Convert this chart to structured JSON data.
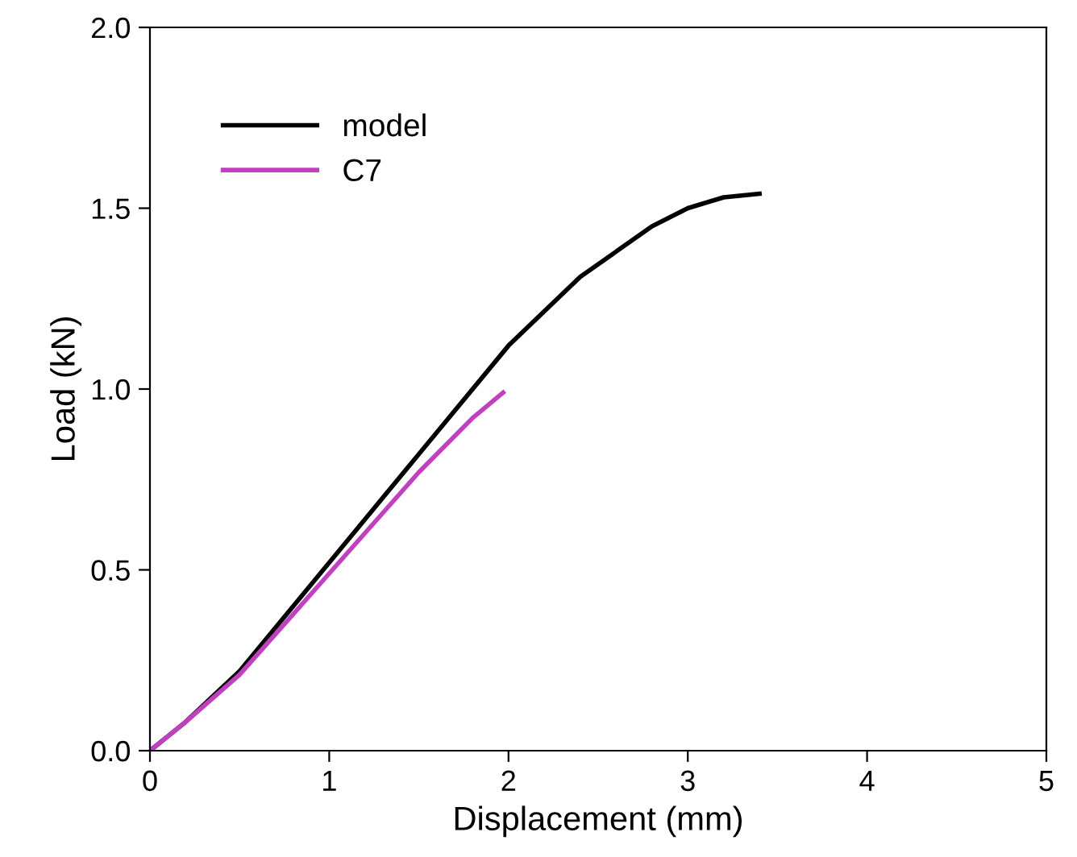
{
  "chart_data": {
    "type": "line",
    "xlabel": "Displacement (mm)",
    "ylabel": "Load (kN)",
    "xlim": [
      0,
      5
    ],
    "xticks": [
      0,
      1,
      2,
      3,
      4,
      5
    ],
    "ylim": [
      0,
      2.0
    ],
    "yticks": [
      {
        "value": 0,
        "label": "0.0"
      },
      {
        "value": 0.5,
        "label": "0.5"
      },
      {
        "value": 1.0,
        "label": "1.0"
      },
      {
        "value": 1.5,
        "label": "1.5"
      },
      {
        "value": 2.0,
        "label": "2.0"
      }
    ],
    "grid": false,
    "legend": "top left",
    "marker": "none",
    "line_style": "solid",
    "series": [
      {
        "name": "model",
        "color": "#000000",
        "x": [
          0,
          0.2,
          0.5,
          1,
          1.5,
          2,
          2.4,
          2.8,
          3.0,
          3.2,
          3.4
        ],
        "values": [
          0,
          0.08,
          0.22,
          0.52,
          0.82,
          1.12,
          1.31,
          1.45,
          1.5,
          1.53,
          1.54
        ]
      },
      {
        "name": "C7",
        "color": "#c040c0",
        "x": [
          0,
          0.2,
          0.5,
          1,
          1.5,
          1.8,
          1.97
        ],
        "values": [
          0,
          0.08,
          0.21,
          0.49,
          0.77,
          0.92,
          0.99
        ]
      }
    ]
  }
}
